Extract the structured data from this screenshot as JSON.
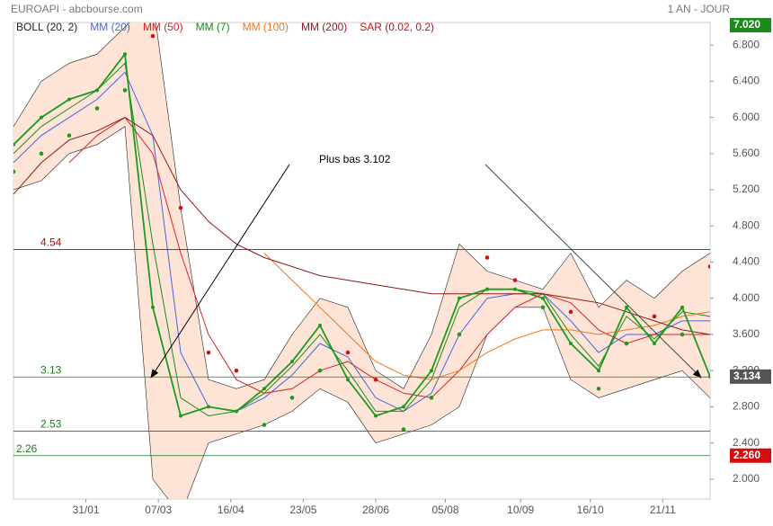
{
  "chart_data": {
    "type": "line",
    "header": "EUROAPI - abcbourse.com",
    "period": "1 AN - JOUR",
    "annotation": "Plus bas 3.102",
    "x": [
      0,
      10,
      20,
      30,
      40,
      50,
      60,
      70,
      80,
      90,
      100,
      110,
      120,
      130,
      140,
      150,
      160,
      170,
      180,
      190,
      200,
      210,
      220,
      230,
      240,
      250
    ],
    "xlim": [
      0,
      250
    ],
    "xticks": [
      {
        "value": 26,
        "label": "31/01"
      },
      {
        "value": 52,
        "label": "07/03"
      },
      {
        "value": 78,
        "label": "16/04"
      },
      {
        "value": 104,
        "label": "23/05"
      },
      {
        "value": 130,
        "label": "28/06"
      },
      {
        "value": 155,
        "label": "05/08"
      },
      {
        "value": 182,
        "label": "10/09"
      },
      {
        "value": 207,
        "label": "16/10"
      },
      {
        "value": 233,
        "label": "21/11"
      }
    ],
    "ylim": [
      1.78,
      7.05
    ],
    "yticks": [
      {
        "value": 2.0,
        "label": "2.000"
      },
      {
        "value": 2.4,
        "label": "2.400"
      },
      {
        "value": 2.8,
        "label": "2.800"
      },
      {
        "value": 3.2,
        "label": "3.200"
      },
      {
        "value": 3.6,
        "label": "3.600"
      },
      {
        "value": 4.0,
        "label": "4.000"
      },
      {
        "value": 4.4,
        "label": "4.400"
      },
      {
        "value": 4.8,
        "label": "4.800"
      },
      {
        "value": 5.2,
        "label": "5.200"
      },
      {
        "value": 5.6,
        "label": "5.600"
      },
      {
        "value": 6.0,
        "label": "6.000"
      },
      {
        "value": 6.4,
        "label": "6.400"
      },
      {
        "value": 6.8,
        "label": "6.800"
      }
    ],
    "values": [
      5.7,
      6.0,
      6.2,
      6.3,
      6.7,
      3.9,
      2.7,
      2.8,
      2.75,
      3.0,
      3.3,
      3.7,
      3.1,
      2.7,
      2.8,
      3.2,
      4.0,
      4.1,
      4.1,
      4.0,
      3.5,
      3.2,
      3.9,
      3.5,
      3.9,
      3.134
    ],
    "color": "#1e9a1e",
    "high": {
      "value": 7.02,
      "label": "7.020",
      "color": "#1e8a1e"
    },
    "low": {
      "value": 2.26,
      "label": "2.260",
      "color": "#d01010"
    },
    "levels": [
      {
        "value": 4.54,
        "color": "#a01010"
      },
      {
        "value": 3.13,
        "color": "#1e7a1e"
      },
      {
        "value": 2.53,
        "color": "#1e7a1e"
      },
      {
        "value": 2.26,
        "color": "#1e7a1e"
      }
    ],
    "series": [
      {
        "name": "BOLL (20, 2)",
        "color": "#222222",
        "fill": "#fde4d6",
        "upper": [
          5.9,
          6.4,
          6.6,
          6.7,
          7.0,
          7.3,
          5.0,
          3.1,
          3.0,
          3.1,
          3.6,
          4.0,
          3.9,
          3.2,
          3.0,
          3.6,
          4.6,
          4.3,
          4.2,
          4.1,
          4.5,
          3.9,
          4.2,
          4.0,
          4.3,
          4.5
        ],
        "lower": [
          5.2,
          5.3,
          5.6,
          5.7,
          5.9,
          2.0,
          1.6,
          2.4,
          2.5,
          2.6,
          2.75,
          3.0,
          2.85,
          2.4,
          2.5,
          2.6,
          2.8,
          3.6,
          3.9,
          3.9,
          3.1,
          2.9,
          3.0,
          3.1,
          3.2,
          2.9
        ]
      },
      {
        "name": "MM (20)",
        "color": "#4466dd",
        "values": [
          5.5,
          5.8,
          6.0,
          6.2,
          6.5,
          5.8,
          3.4,
          2.8,
          2.75,
          2.9,
          3.15,
          3.5,
          3.35,
          2.9,
          2.75,
          2.95,
          3.6,
          4.0,
          4.05,
          4.05,
          3.75,
          3.4,
          3.6,
          3.6,
          3.75,
          3.75
        ]
      },
      {
        "name": "MM (50)",
        "color": "#dd2222",
        "values": [
          null,
          null,
          5.5,
          5.8,
          6.0,
          5.6,
          4.5,
          3.6,
          3.1,
          2.95,
          3.0,
          3.2,
          3.3,
          3.1,
          2.95,
          2.9,
          3.2,
          3.6,
          3.9,
          4.05,
          3.95,
          3.65,
          3.5,
          3.6,
          3.6,
          3.6
        ]
      },
      {
        "name": "MM (7)",
        "color": "#1e8a1e",
        "values": [
          5.6,
          5.9,
          6.1,
          6.3,
          6.6,
          4.6,
          2.9,
          2.7,
          2.75,
          2.95,
          3.25,
          3.6,
          3.2,
          2.75,
          2.75,
          3.1,
          3.9,
          4.1,
          4.1,
          4.05,
          3.6,
          3.25,
          3.8,
          3.55,
          3.85,
          3.8
        ]
      },
      {
        "name": "MM (100)",
        "color": "#ee7722",
        "values": [
          null,
          null,
          null,
          null,
          null,
          null,
          null,
          null,
          null,
          4.5,
          4.2,
          3.9,
          3.6,
          3.3,
          3.15,
          3.1,
          3.2,
          3.4,
          3.55,
          3.65,
          3.65,
          3.6,
          3.65,
          3.7,
          3.8,
          3.85
        ]
      },
      {
        "name": "MM (200)",
        "color": "#8b1a1a",
        "values": [
          5.15,
          5.5,
          5.75,
          5.85,
          6.0,
          5.8,
          5.2,
          4.85,
          4.6,
          4.45,
          4.35,
          4.25,
          4.2,
          4.15,
          4.1,
          4.05,
          4.05,
          4.05,
          4.05,
          4.05,
          4.0,
          3.95,
          3.85,
          3.75,
          3.65,
          3.6
        ]
      },
      {
        "name": "SAR (0.02, 0.2)",
        "color": "#cc1111",
        "color_below": "#1e9a1e",
        "values": [
          5.4,
          5.6,
          5.8,
          6.1,
          6.3,
          6.9,
          5.0,
          3.4,
          3.2,
          2.6,
          2.9,
          3.2,
          3.4,
          3.1,
          2.55,
          2.9,
          3.6,
          4.45,
          4.2,
          3.9,
          3.85,
          3.0,
          3.5,
          3.8,
          3.6,
          4.35
        ]
      }
    ]
  }
}
